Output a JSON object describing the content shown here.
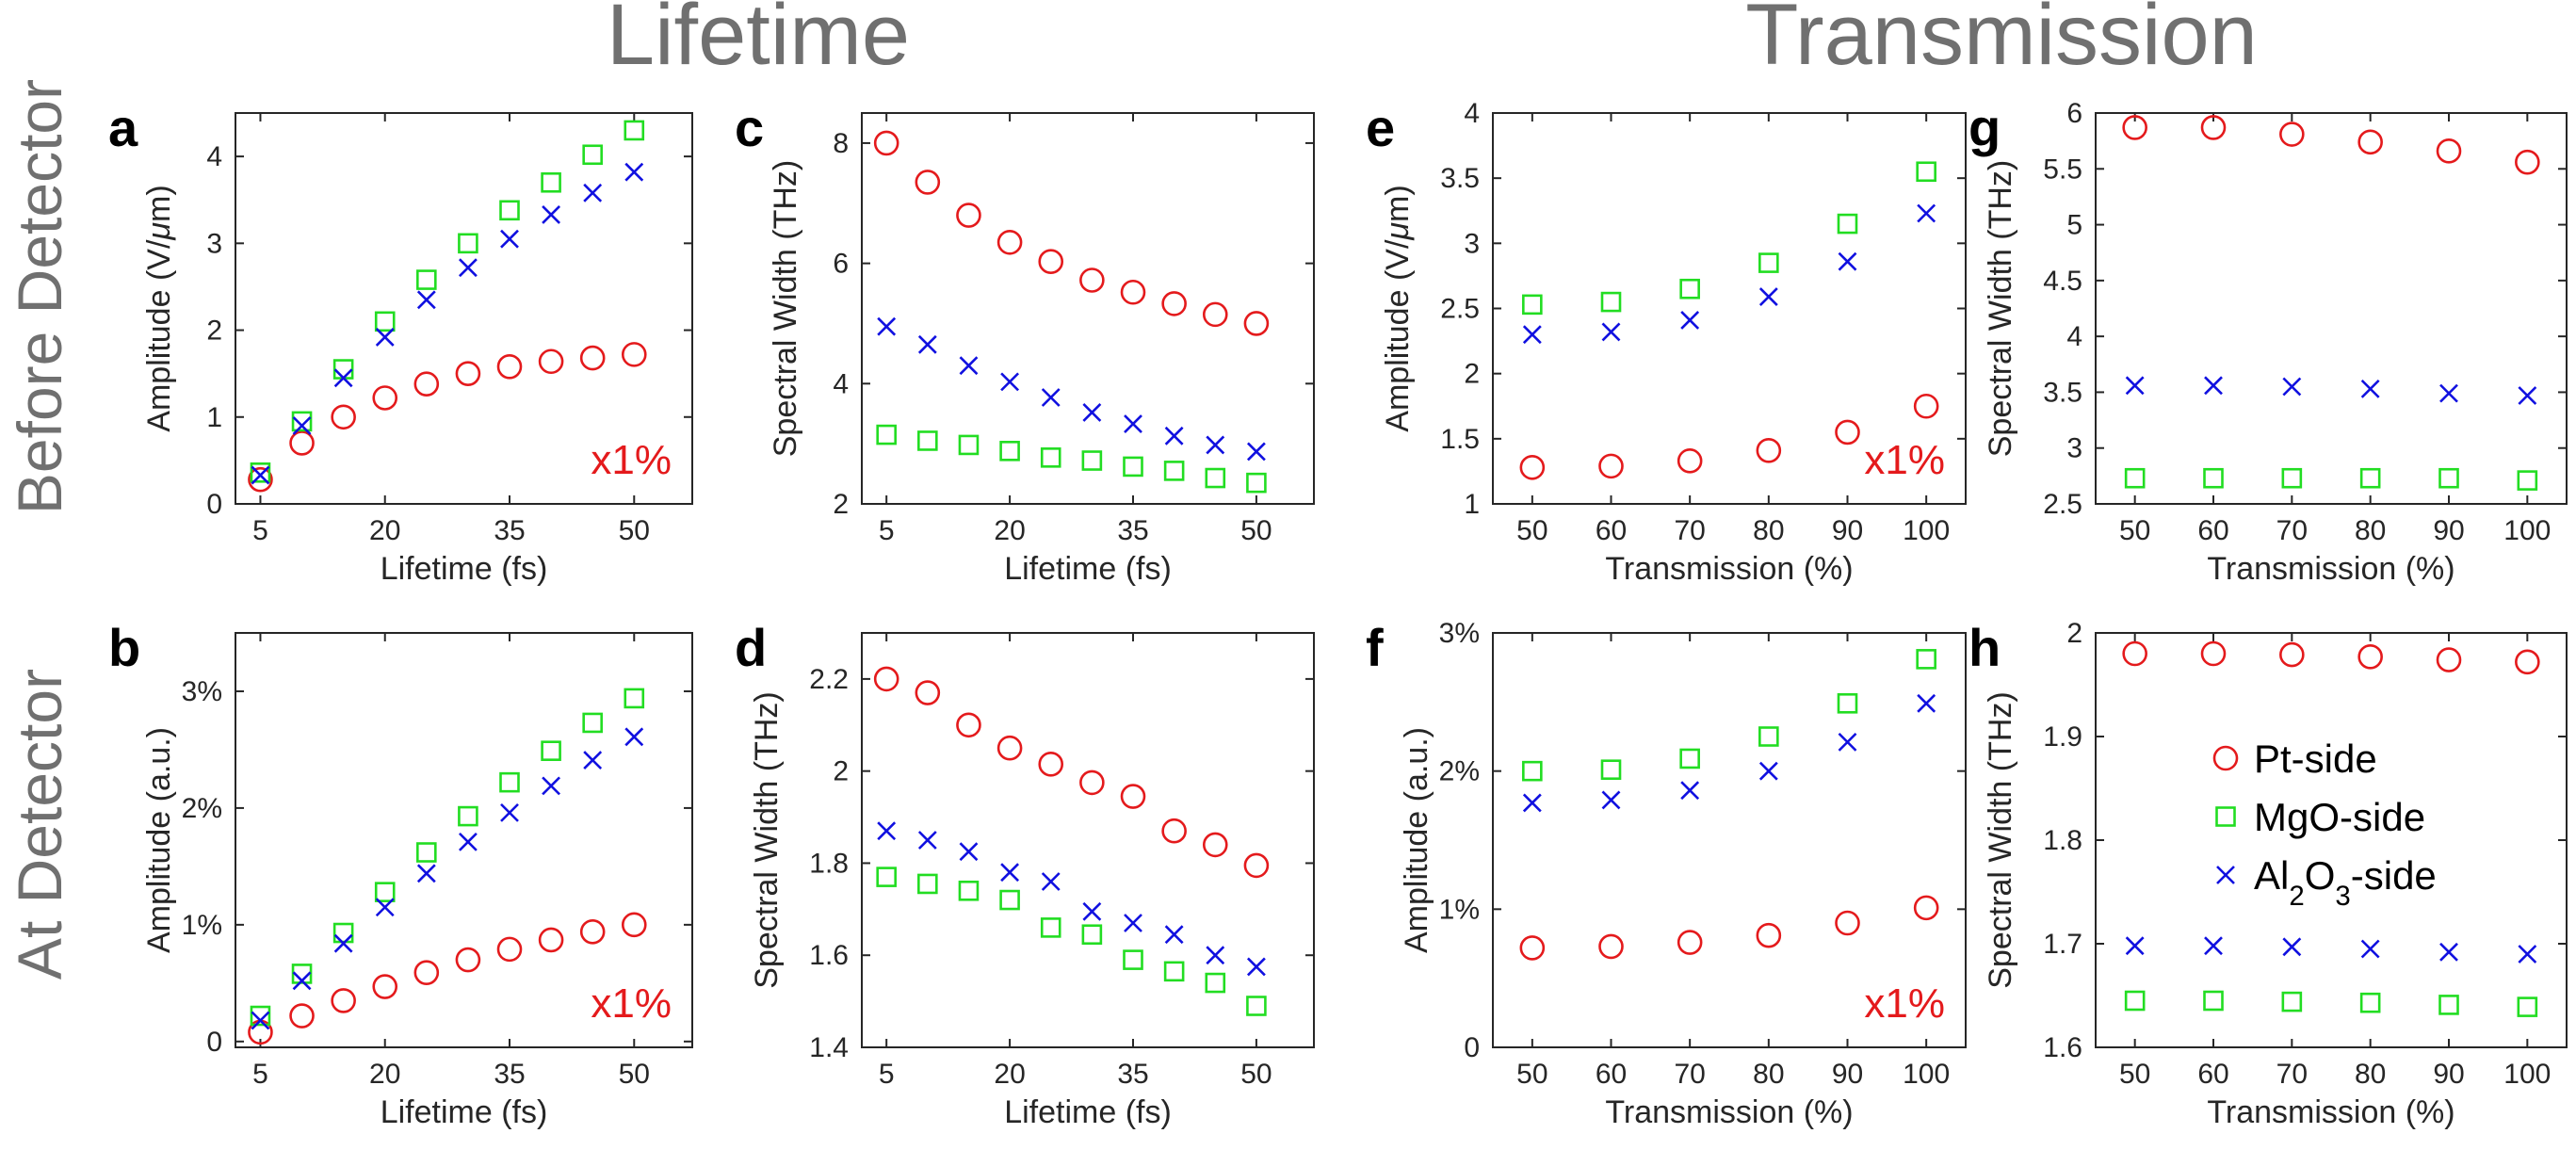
{
  "figure": {
    "column_headers": [
      "Lifetime",
      "Transmission"
    ],
    "row_headers": [
      "Before Detector",
      "At Detector"
    ],
    "legend": [
      {
        "label": "Pt-side",
        "label_parts": [
          [
            "Pt-side",
            ""
          ]
        ],
        "marker": "circle",
        "color": "#e41a1c"
      },
      {
        "label": "MgO-side",
        "label_parts": [
          [
            "MgO-side",
            ""
          ]
        ],
        "marker": "square",
        "color": "#22dd22"
      },
      {
        "label": "Al2O3-side",
        "label_parts": [
          [
            "Al",
            ""
          ],
          [
            "2",
            "sub"
          ],
          [
            "O",
            ""
          ],
          [
            "3",
            "sub"
          ],
          [
            "-side",
            ""
          ]
        ],
        "marker": "x",
        "color": "#1010e0"
      }
    ],
    "colors": {
      "header_gray": "#707070",
      "axis": "#262626",
      "note_red": "#e41a1c"
    }
  },
  "chart_data": [
    {
      "panel": "a",
      "type": "scatter",
      "xlabel": "Lifetime (fs)",
      "ylabel_parts": [
        [
          "Amplitude (V/",
          ""
        ],
        [
          "μ",
          "i"
        ],
        [
          "m)",
          ""
        ]
      ],
      "xlim": [
        2,
        57
      ],
      "ylim": [
        0,
        4.5
      ],
      "xticks": [
        5,
        20,
        35,
        50
      ],
      "xticklabels": [
        "5",
        "20",
        "35",
        "50"
      ],
      "yticks": [
        0,
        1,
        2,
        3,
        4
      ],
      "yticklabels": [
        "0",
        "1",
        "2",
        "3",
        "4"
      ],
      "annotation": "x1%",
      "x": [
        5,
        10,
        15,
        20,
        25,
        30,
        35,
        40,
        45,
        50
      ],
      "series": [
        {
          "name": "Pt-side",
          "values": [
            0.28,
            0.7,
            1.0,
            1.22,
            1.38,
            1.5,
            1.58,
            1.64,
            1.68,
            1.72
          ]
        },
        {
          "name": "MgO-side",
          "values": [
            0.36,
            0.95,
            1.55,
            2.1,
            2.58,
            3.0,
            3.38,
            3.7,
            4.02,
            4.3
          ]
        },
        {
          "name": "Al2O3-side",
          "values": [
            0.33,
            0.9,
            1.45,
            1.92,
            2.35,
            2.72,
            3.05,
            3.33,
            3.58,
            3.82
          ]
        }
      ]
    },
    {
      "panel": "b",
      "type": "scatter",
      "xlabel": "Lifetime (fs)",
      "ylabel_parts": [
        [
          "Amplitude (a.u.)",
          ""
        ]
      ],
      "xlim": [
        2,
        57
      ],
      "ylim": [
        -0.0005,
        0.035
      ],
      "xticks": [
        5,
        20,
        35,
        50
      ],
      "xticklabels": [
        "5",
        "20",
        "35",
        "50"
      ],
      "yticks": [
        0,
        0.01,
        0.02,
        0.03
      ],
      "yticklabels": [
        "0",
        "1%",
        "2%",
        "3%"
      ],
      "annotation": "x1%",
      "x": [
        5,
        10,
        15,
        20,
        25,
        30,
        35,
        40,
        45,
        50
      ],
      "series": [
        {
          "name": "Pt-side",
          "values": [
            0.0008,
            0.0022,
            0.0035,
            0.0047,
            0.0059,
            0.007,
            0.0079,
            0.0087,
            0.0094,
            0.01
          ]
        },
        {
          "name": "MgO-side",
          "values": [
            0.0022,
            0.0058,
            0.0093,
            0.0128,
            0.0162,
            0.0193,
            0.0222,
            0.0249,
            0.0273,
            0.0294
          ]
        },
        {
          "name": "Al2O3-side",
          "values": [
            0.0018,
            0.0052,
            0.0084,
            0.0115,
            0.0144,
            0.0171,
            0.0196,
            0.0219,
            0.0241,
            0.0261
          ]
        }
      ]
    },
    {
      "panel": "c",
      "type": "scatter",
      "xlabel": "Lifetime (fs)",
      "ylabel_parts": [
        [
          "Spectral Width (THz)",
          ""
        ]
      ],
      "xlim": [
        2,
        57
      ],
      "ylim": [
        2,
        8.5
      ],
      "xticks": [
        5,
        20,
        35,
        50
      ],
      "xticklabels": [
        "5",
        "20",
        "35",
        "50"
      ],
      "yticks": [
        2,
        4,
        6,
        8
      ],
      "yticklabels": [
        "2",
        "4",
        "6",
        "8"
      ],
      "x": [
        5,
        10,
        15,
        20,
        25,
        30,
        35,
        40,
        45,
        50
      ],
      "series": [
        {
          "name": "Pt-side",
          "values": [
            8.0,
            7.35,
            6.8,
            6.35,
            6.03,
            5.72,
            5.52,
            5.33,
            5.15,
            5.0
          ]
        },
        {
          "name": "MgO-side",
          "values": [
            3.15,
            3.05,
            2.98,
            2.88,
            2.77,
            2.72,
            2.62,
            2.55,
            2.43,
            2.35
          ]
        },
        {
          "name": "Al2O3-side",
          "values": [
            4.95,
            4.65,
            4.3,
            4.03,
            3.77,
            3.52,
            3.33,
            3.13,
            2.98,
            2.87
          ]
        }
      ]
    },
    {
      "panel": "d",
      "type": "scatter",
      "xlabel": "Lifetime (fs)",
      "ylabel_parts": [
        [
          "Spectral Width (THz)",
          ""
        ]
      ],
      "xlim": [
        2,
        57
      ],
      "ylim": [
        1.4,
        2.3
      ],
      "xticks": [
        5,
        20,
        35,
        50
      ],
      "xticklabels": [
        "5",
        "20",
        "35",
        "50"
      ],
      "yticks": [
        1.4,
        1.6,
        1.8,
        2.0,
        2.2
      ],
      "yticklabels": [
        "1.4",
        "1.6",
        "1.8",
        "2",
        "2.2"
      ],
      "x": [
        5,
        10,
        15,
        20,
        25,
        30,
        35,
        40,
        45,
        50
      ],
      "series": [
        {
          "name": "Pt-side",
          "values": [
            2.2,
            2.17,
            2.1,
            2.05,
            2.015,
            1.975,
            1.945,
            1.87,
            1.84,
            1.795
          ]
        },
        {
          "name": "MgO-side",
          "values": [
            1.77,
            1.755,
            1.74,
            1.72,
            1.66,
            1.645,
            1.59,
            1.565,
            1.54,
            1.49
          ]
        },
        {
          "name": "Al2O3-side",
          "values": [
            1.87,
            1.85,
            1.825,
            1.78,
            1.76,
            1.695,
            1.67,
            1.645,
            1.6,
            1.575
          ]
        }
      ]
    },
    {
      "panel": "e",
      "type": "scatter",
      "xlabel": "Transmission (%)",
      "ylabel_parts": [
        [
          "Amplitude (V/",
          ""
        ],
        [
          "μ",
          "i"
        ],
        [
          "m)",
          ""
        ]
      ],
      "xlim": [
        45,
        105
      ],
      "ylim": [
        1,
        4
      ],
      "xticks": [
        50,
        60,
        70,
        80,
        90,
        100
      ],
      "xticklabels": [
        "50",
        "60",
        "70",
        "80",
        "90",
        "100"
      ],
      "yticks": [
        1,
        1.5,
        2,
        2.5,
        3,
        3.5,
        4
      ],
      "yticklabels": [
        "1",
        "1.5",
        "2",
        "2.5",
        "3",
        "3.5",
        "4"
      ],
      "annotation": "x1%",
      "x": [
        50,
        60,
        70,
        80,
        90,
        100
      ],
      "series": [
        {
          "name": "Pt-side",
          "values": [
            1.28,
            1.29,
            1.33,
            1.41,
            1.55,
            1.75
          ]
        },
        {
          "name": "MgO-side",
          "values": [
            2.53,
            2.55,
            2.65,
            2.85,
            3.15,
            3.55
          ]
        },
        {
          "name": "Al2O3-side",
          "values": [
            2.3,
            2.32,
            2.41,
            2.59,
            2.86,
            3.23
          ]
        }
      ]
    },
    {
      "panel": "f",
      "type": "scatter",
      "xlabel": "Transmission (%)",
      "ylabel_parts": [
        [
          "Amplitude (a.u.)",
          ""
        ]
      ],
      "xlim": [
        45,
        105
      ],
      "ylim": [
        0,
        0.03
      ],
      "xticks": [
        50,
        60,
        70,
        80,
        90,
        100
      ],
      "xticklabels": [
        "50",
        "60",
        "70",
        "80",
        "90",
        "100"
      ],
      "yticks": [
        0,
        0.01,
        0.02,
        0.03
      ],
      "yticklabels": [
        "0",
        "1%",
        "2%",
        "3%"
      ],
      "annotation": "x1%",
      "x": [
        50,
        60,
        70,
        80,
        90,
        100
      ],
      "series": [
        {
          "name": "Pt-side",
          "values": [
            0.0072,
            0.0073,
            0.0076,
            0.0081,
            0.009,
            0.0101
          ]
        },
        {
          "name": "MgO-side",
          "values": [
            0.02,
            0.0201,
            0.0209,
            0.0225,
            0.0249,
            0.0281
          ]
        },
        {
          "name": "Al2O3-side",
          "values": [
            0.0177,
            0.0179,
            0.0186,
            0.02,
            0.0221,
            0.0249
          ]
        }
      ]
    },
    {
      "panel": "g",
      "type": "scatter",
      "xlabel": "Transmission (%)",
      "ylabel_parts": [
        [
          "Spectral Width (THz)",
          ""
        ]
      ],
      "xlim": [
        45,
        105
      ],
      "ylim": [
        2.5,
        6
      ],
      "xticks": [
        50,
        60,
        70,
        80,
        90,
        100
      ],
      "xticklabels": [
        "50",
        "60",
        "70",
        "80",
        "90",
        "100"
      ],
      "yticks": [
        2.5,
        3,
        3.5,
        4,
        4.5,
        5,
        5.5,
        6
      ],
      "yticklabels": [
        "2.5",
        "3",
        "3.5",
        "4",
        "4.5",
        "5",
        "5.5",
        "6"
      ],
      "x": [
        50,
        60,
        70,
        80,
        90,
        100
      ],
      "series": [
        {
          "name": "Pt-side",
          "values": [
            5.87,
            5.87,
            5.81,
            5.74,
            5.66,
            5.56
          ]
        },
        {
          "name": "MgO-side",
          "values": [
            2.73,
            2.73,
            2.73,
            2.73,
            2.73,
            2.71
          ]
        },
        {
          "name": "Al2O3-side",
          "values": [
            3.56,
            3.56,
            3.55,
            3.53,
            3.49,
            3.47
          ]
        }
      ]
    },
    {
      "panel": "h",
      "type": "scatter",
      "xlabel": "Transmission (%)",
      "ylabel_parts": [
        [
          "Spectral Width (THz)",
          ""
        ]
      ],
      "xlim": [
        45,
        105
      ],
      "ylim": [
        1.6,
        2.0
      ],
      "xticks": [
        50,
        60,
        70,
        80,
        90,
        100
      ],
      "xticklabels": [
        "50",
        "60",
        "70",
        "80",
        "90",
        "100"
      ],
      "yticks": [
        1.6,
        1.7,
        1.8,
        1.9,
        2.0
      ],
      "yticklabels": [
        "1.6",
        "1.7",
        "1.8",
        "1.9",
        "2"
      ],
      "x": [
        50,
        60,
        70,
        80,
        90,
        100
      ],
      "series": [
        {
          "name": "Pt-side",
          "values": [
            1.98,
            1.98,
            1.979,
            1.977,
            1.974,
            1.972
          ]
        },
        {
          "name": "MgO-side",
          "values": [
            1.645,
            1.645,
            1.644,
            1.643,
            1.641,
            1.639
          ]
        },
        {
          "name": "Al2O3-side",
          "values": [
            1.698,
            1.698,
            1.697,
            1.695,
            1.692,
            1.69
          ]
        }
      ]
    }
  ]
}
